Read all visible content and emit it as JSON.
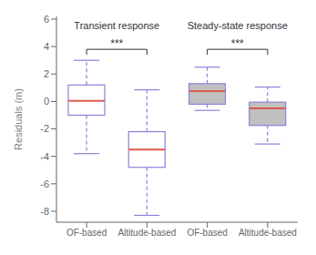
{
  "chart_data": {
    "type": "box",
    "ylabel": "Residuals (m)",
    "categories": [
      "OF-based",
      "Altitude-based",
      "OF-based",
      "Altitude-based"
    ],
    "boxes": [
      {
        "q1": -1.0,
        "median": 0.05,
        "q3": 1.2,
        "whislo": -3.8,
        "whishi": 3.0
      },
      {
        "q1": -4.8,
        "median": -3.5,
        "q3": -2.2,
        "whislo": -8.3,
        "whishi": 0.85
      },
      {
        "q1": -0.2,
        "median": 0.75,
        "q3": 1.3,
        "whislo": -0.65,
        "whishi": 2.5
      },
      {
        "q1": -1.75,
        "median": -0.5,
        "q3": -0.05,
        "whislo": -3.1,
        "whishi": 1.05
      }
    ],
    "colors": [
      "#ffffff",
      "#ffffff",
      "#c0c0c0",
      "#c0c0c0"
    ],
    "ylim": [
      -8.8,
      6.2
    ],
    "yticks": [
      -8,
      -6,
      -4,
      -2,
      0,
      2,
      4,
      6
    ],
    "annotations": [
      {
        "text": "Transient response",
        "y": 5.8,
        "span": [
          0,
          1
        ]
      },
      {
        "text": "Steady-state response",
        "y": 5.8,
        "span": [
          2,
          3
        ]
      }
    ],
    "sig_bars": [
      {
        "text": "***",
        "y": 3.8,
        "span": [
          0,
          1
        ]
      },
      {
        "text": "***",
        "y": 3.8,
        "span": [
          2,
          3
        ]
      }
    ]
  }
}
